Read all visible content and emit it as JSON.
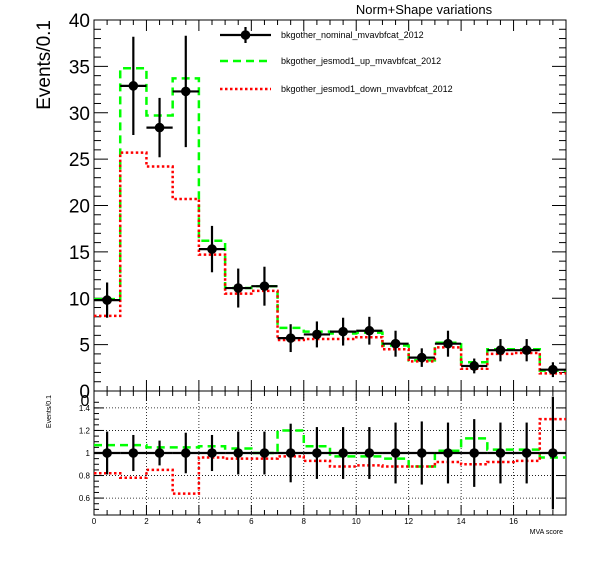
{
  "chart_data": [
    {
      "type": "histogram",
      "title": "Norm+Shape variations",
      "ylabel": "Events/0.1",
      "xlim": [
        0,
        18
      ],
      "ylim": [
        0,
        40
      ],
      "yticks": [
        0,
        5,
        10,
        15,
        20,
        25,
        30,
        35,
        40
      ],
      "bin_edges": [
        0,
        1,
        2,
        3,
        4,
        5,
        6,
        7,
        8,
        9,
        10,
        11,
        12,
        13,
        14,
        15,
        16,
        17,
        18
      ],
      "series": [
        {
          "name": "bkgother_nominal_mvavbfcat_2012",
          "style": "points",
          "color": "#000000",
          "x": [
            0.5,
            1.5,
            2.5,
            3.5,
            4.5,
            5.5,
            6.5,
            7.5,
            8.5,
            9.5,
            10.5,
            11.5,
            12.5,
            13.5,
            14.5,
            15.5,
            16.5,
            17.5
          ],
          "values": [
            9.8,
            32.9,
            28.4,
            32.3,
            15.3,
            11.1,
            11.3,
            5.7,
            6.1,
            6.4,
            6.5,
            5.1,
            3.6,
            5.1,
            2.7,
            4.4,
            4.4,
            2.3
          ],
          "errors": [
            1.9,
            5.3,
            3.2,
            6.0,
            2.5,
            2.1,
            2.1,
            1.5,
            1.4,
            1.5,
            1.5,
            1.4,
            1.0,
            1.4,
            0.8,
            1.2,
            1.2,
            0.8
          ]
        },
        {
          "name": "bkgother_jesmod1_up_mvavbfcat_2012",
          "style": "step-dashed",
          "color": "#00ff00",
          "values": [
            9.9,
            34.8,
            29.7,
            33.7,
            16.2,
            11.1,
            11.3,
            6.8,
            6.4,
            6.2,
            6.3,
            4.9,
            3.3,
            5.2,
            3.1,
            4.5,
            4.5,
            2.2
          ]
        },
        {
          "name": "bkgother_jesmod1_down_mvavbfcat_2012",
          "style": "step-dotted",
          "color": "#ff0000",
          "values": [
            8.1,
            25.7,
            24.2,
            20.7,
            14.7,
            10.5,
            10.8,
            5.5,
            5.6,
            5.6,
            5.8,
            4.5,
            3.2,
            4.7,
            2.4,
            4.0,
            4.1,
            1.9
          ]
        }
      ]
    },
    {
      "type": "ratio",
      "ylabel": "Events/0.1",
      "xlabel": "MVA score",
      "xlim": [
        0,
        18
      ],
      "ylim": [
        0.45,
        1.55
      ],
      "yticks": [
        "0.6",
        "0.8",
        "1",
        "1.2",
        "1.4"
      ],
      "xticks": [
        "0",
        "2",
        "4",
        "6",
        "8",
        "10",
        "12",
        "14",
        "16"
      ],
      "grid": true,
      "series": [
        {
          "name": "bkgother_nominal_mvavbfcat_2012",
          "style": "points",
          "color": "#000000",
          "values": [
            1,
            1,
            1,
            1,
            1,
            1,
            1,
            1,
            1,
            1,
            1,
            1,
            1,
            1,
            1,
            1,
            1,
            1
          ],
          "errors": [
            0.19,
            0.16,
            0.11,
            0.18,
            0.16,
            0.19,
            0.19,
            0.26,
            0.23,
            0.23,
            0.23,
            0.27,
            0.28,
            0.27,
            0.3,
            0.27,
            0.27,
            0.5
          ]
        },
        {
          "name": "bkgother_jesmod1_up_mvavbfcat_2012",
          "style": "step-dashed",
          "color": "#00ff00",
          "values": [
            1.07,
            1.07,
            1.05,
            1.05,
            1.06,
            1.04,
            1.0,
            1.2,
            1.06,
            0.97,
            0.97,
            0.95,
            0.88,
            1.02,
            1.13,
            1.03,
            1.03,
            0.96
          ]
        },
        {
          "name": "bkgother_jesmod1_down_mvavbfcat_2012",
          "style": "step-dotted",
          "color": "#ff0000",
          "values": [
            0.82,
            0.78,
            0.85,
            0.64,
            0.96,
            0.95,
            0.95,
            0.97,
            0.93,
            0.88,
            0.89,
            0.88,
            0.88,
            0.92,
            0.9,
            0.92,
            0.93,
            1.3
          ]
        }
      ]
    }
  ],
  "labels": {
    "top_overflow_tick": "0"
  }
}
